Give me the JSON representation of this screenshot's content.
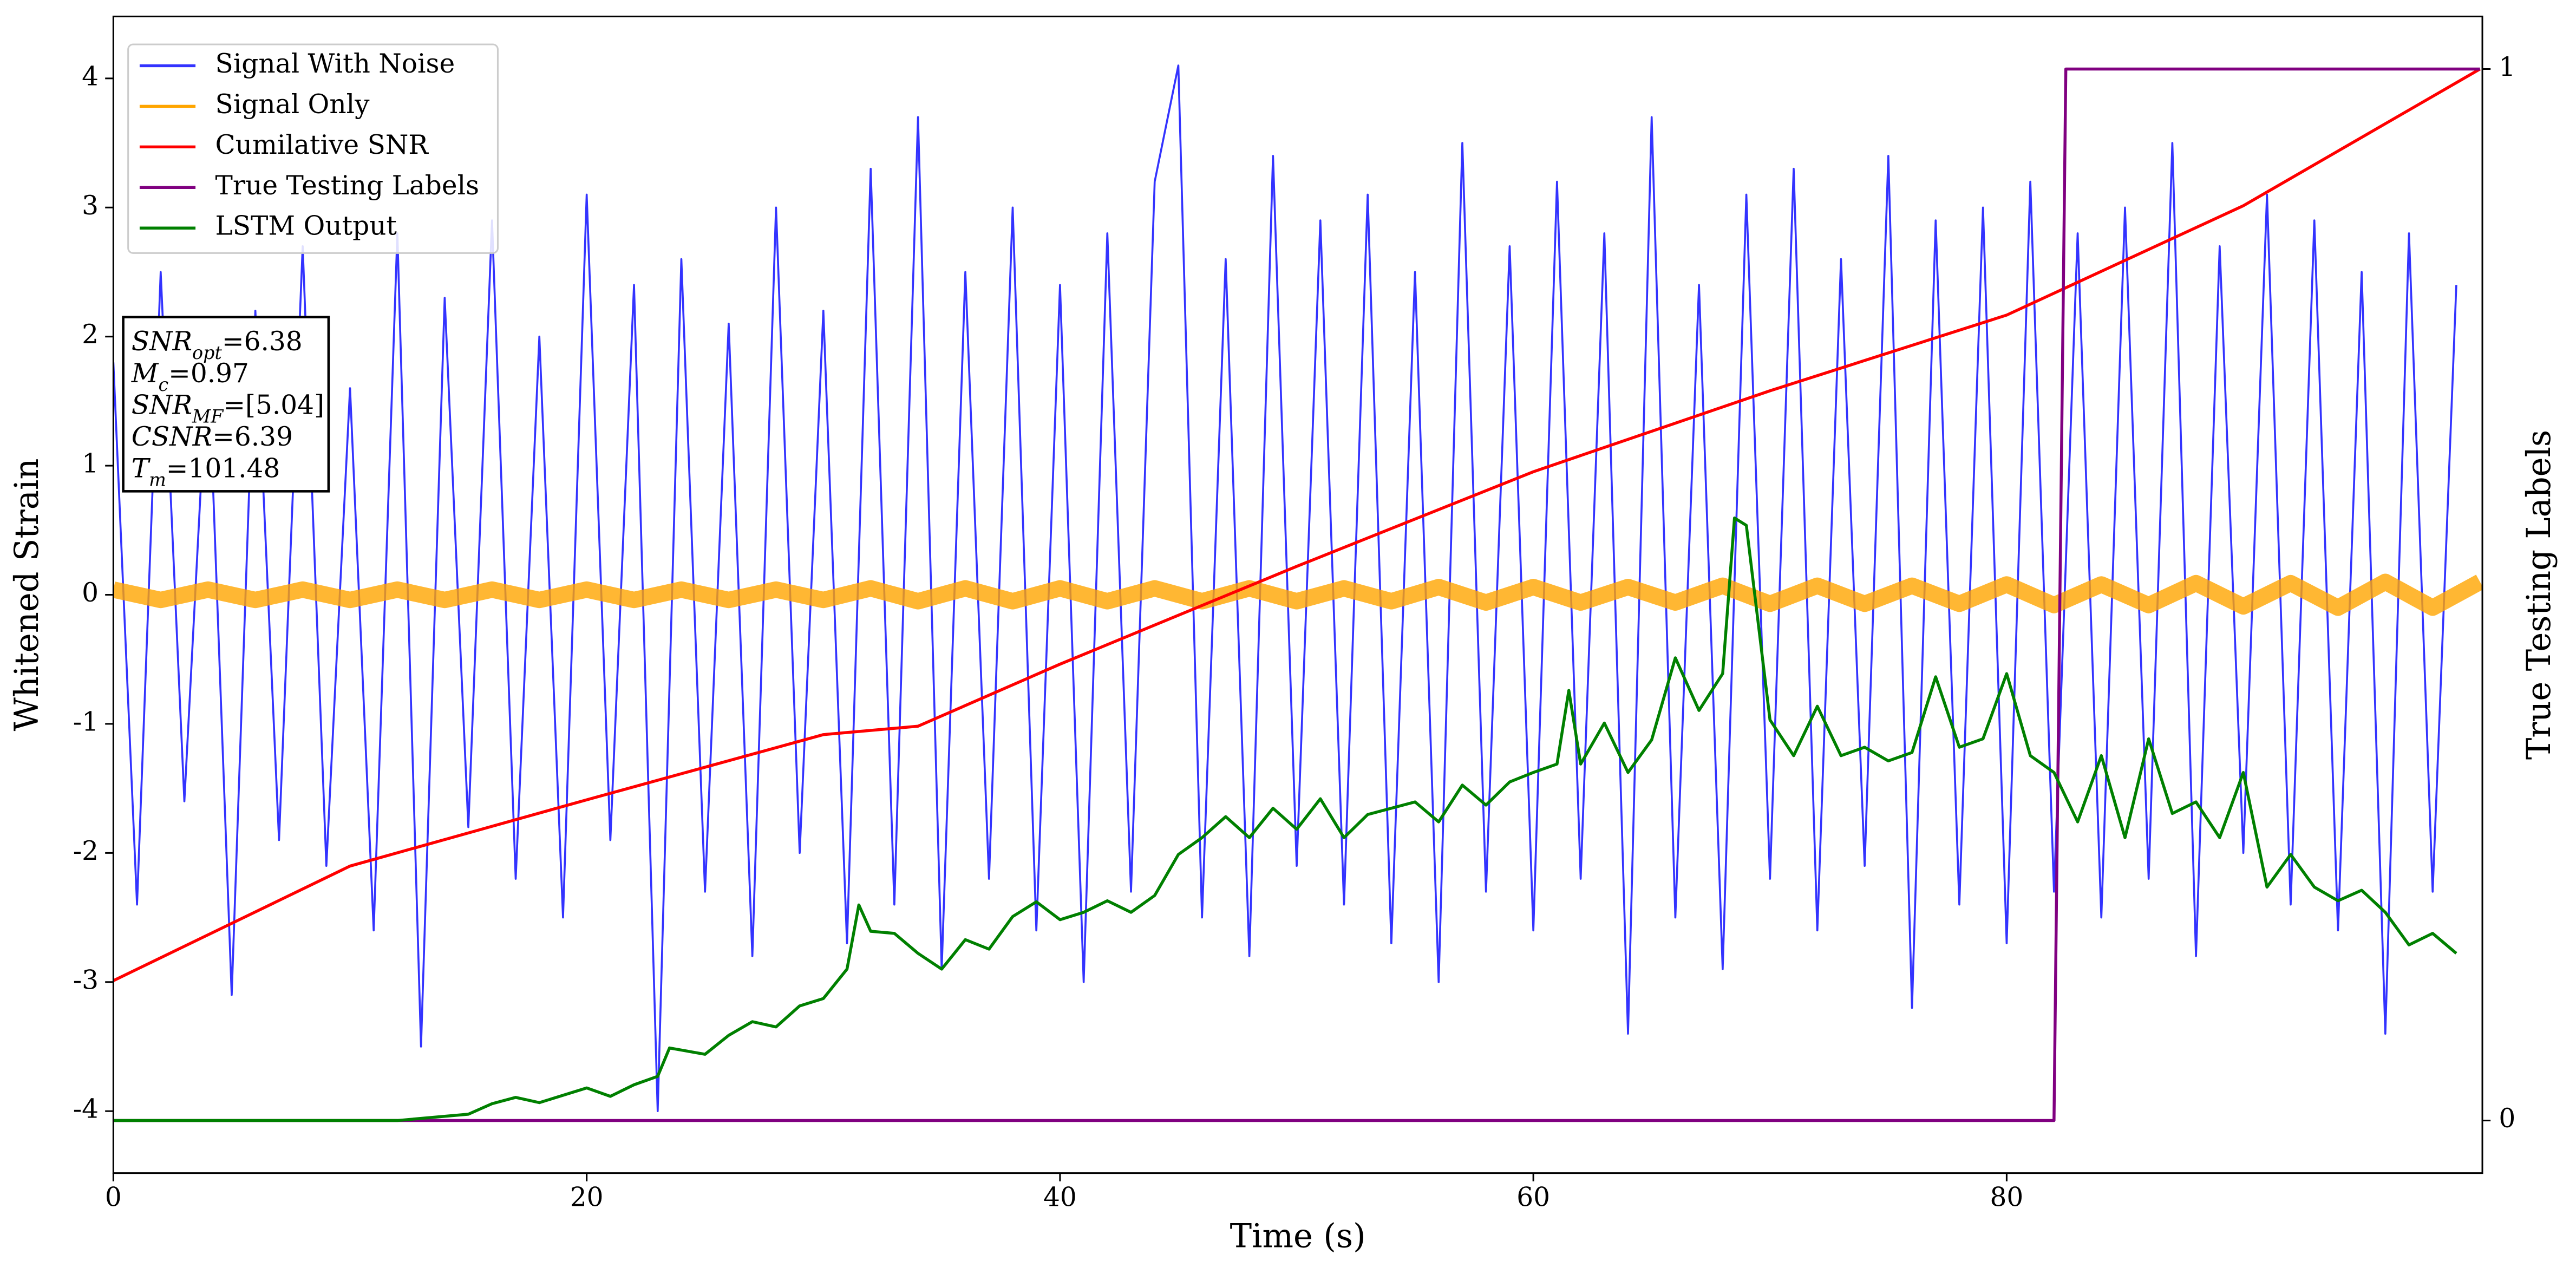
{
  "chart_data": {
    "type": "line",
    "xlabel": "Time (s)",
    "ylabel": "Whitened Strain",
    "y2label": "True Testing Labels",
    "xlim": [
      0,
      100.1
    ],
    "ylim": [
      -4.48,
      4.48
    ],
    "y2lim": [
      -0.05,
      1.05
    ],
    "xticks": [
      0,
      20,
      40,
      60,
      80
    ],
    "yticks": [
      -4,
      -3,
      -2,
      -1,
      0,
      1,
      2,
      3,
      4
    ],
    "y2ticks": [
      0,
      1
    ],
    "legend": "upper left",
    "annotation": [
      {
        "base": "SNR",
        "sub": "opt",
        "text": "=6.38"
      },
      {
        "base": "M",
        "sub": "c",
        "text": "=0.97"
      },
      {
        "base": "SNR",
        "sub": "MF",
        "text": "=[5.04]"
      },
      {
        "base": "CSNR",
        "sub": "",
        "text": "=6.39"
      },
      {
        "base": "T",
        "sub": "m",
        "text": "=101.48"
      }
    ],
    "series": [
      {
        "name": "Signal With Noise",
        "color": "#3333ff",
        "axis": "y",
        "x": [
          0,
          1,
          2,
          3,
          4,
          5,
          6,
          7,
          8,
          9,
          10,
          11,
          12,
          13,
          14,
          15,
          16,
          17,
          18,
          19,
          20,
          21,
          22,
          23,
          24,
          25,
          26,
          27,
          28,
          29,
          30,
          31,
          32,
          33,
          34,
          35,
          36,
          37,
          38,
          39,
          40,
          41,
          42,
          43,
          44,
          45,
          46,
          47,
          48,
          49,
          50,
          51,
          52,
          53,
          54,
          55,
          56,
          57,
          58,
          59,
          60,
          61,
          62,
          63,
          64,
          65,
          66,
          67,
          68,
          69,
          70,
          71,
          72,
          73,
          74,
          75,
          76,
          77,
          78,
          79,
          80,
          81,
          82,
          83,
          84,
          85,
          86,
          87,
          88,
          89,
          90,
          91,
          92,
          93,
          94,
          95,
          96,
          97,
          98,
          99
        ],
        "values": [
          1.8,
          -2.4,
          2.5,
          -1.6,
          1.9,
          -3.1,
          2.2,
          -1.9,
          2.7,
          -2.1,
          1.6,
          -2.6,
          2.8,
          -3.5,
          2.3,
          -1.8,
          2.9,
          -2.2,
          2.0,
          -2.5,
          3.1,
          -1.9,
          2.4,
          -4.0,
          2.6,
          -2.3,
          2.1,
          -2.8,
          3.0,
          -2.0,
          2.2,
          -2.7,
          3.3,
          -2.4,
          3.7,
          -2.9,
          2.5,
          -2.2,
          3.0,
          -2.6,
          2.4,
          -3.0,
          2.8,
          -2.3,
          3.2,
          4.1,
          -2.5,
          2.6,
          -2.8,
          3.4,
          -2.1,
          2.9,
          -2.4,
          3.1,
          -2.7,
          2.5,
          -3.0,
          3.5,
          -2.3,
          2.7,
          -2.6,
          3.2,
          -2.2,
          2.8,
          -3.4,
          3.7,
          -2.5,
          2.4,
          -2.9,
          3.1,
          -2.2,
          3.3,
          -2.6,
          2.6,
          -2.1,
          3.4,
          -3.2,
          2.9,
          -2.4,
          3.0,
          -2.7,
          3.2,
          -2.3,
          2.8,
          -2.5,
          3.0,
          -2.2,
          3.5,
          -2.8,
          2.7,
          -2.0,
          3.1,
          -2.4,
          2.9,
          -2.6,
          2.5,
          -3.4,
          2.8,
          -2.3,
          2.4
        ]
      },
      {
        "name": "Signal Only",
        "color": "#ffa500",
        "axis": "y",
        "x": [
          0,
          2,
          4,
          6,
          8,
          10,
          12,
          14,
          16,
          18,
          20,
          22,
          24,
          26,
          28,
          30,
          32,
          34,
          36,
          38,
          40,
          42,
          44,
          46,
          48,
          50,
          52,
          54,
          56,
          58,
          60,
          62,
          64,
          66,
          68,
          70,
          72,
          74,
          76,
          78,
          80,
          82,
          84,
          86,
          88,
          90,
          92,
          94,
          96,
          98,
          100
        ],
        "values": [
          0.04,
          -0.04,
          0.04,
          -0.04,
          0.04,
          -0.04,
          0.04,
          -0.04,
          0.04,
          -0.04,
          0.04,
          -0.04,
          0.04,
          -0.04,
          0.04,
          -0.04,
          0.05,
          -0.05,
          0.05,
          -0.05,
          0.05,
          -0.05,
          0.05,
          -0.05,
          0.05,
          -0.05,
          0.05,
          -0.05,
          0.06,
          -0.06,
          0.06,
          -0.06,
          0.06,
          -0.06,
          0.07,
          -0.07,
          0.07,
          -0.07,
          0.07,
          -0.07,
          0.08,
          -0.08,
          0.08,
          -0.08,
          0.09,
          -0.09,
          0.09,
          -0.1,
          0.1,
          -0.1,
          0.1
        ]
      },
      {
        "name": "Cumilative SNR",
        "color": "#ff0000",
        "axis": "y2",
        "x": [
          0,
          10,
          20,
          30,
          34,
          40,
          50,
          60,
          70,
          80,
          90,
          100
        ],
        "values": [
          0.133,
          0.242,
          0.305,
          0.367,
          0.375,
          0.434,
          0.527,
          0.617,
          0.694,
          0.766,
          0.87,
          1.0
        ]
      },
      {
        "name": "True Testing Labels",
        "color": "#800080",
        "axis": "y2",
        "x": [
          0,
          82,
          82.5,
          100
        ],
        "values": [
          0,
          0,
          1,
          1
        ]
      },
      {
        "name": "LSTM Output",
        "color": "#008000",
        "axis": "y2",
        "x": [
          0,
          12,
          15,
          16,
          17,
          18,
          20,
          21,
          22,
          23,
          23.5,
          25,
          26,
          27,
          28,
          29,
          30,
          31,
          31.5,
          32,
          33,
          34,
          35,
          36,
          37,
          38,
          39,
          40,
          41,
          42,
          43,
          44,
          45,
          46,
          47,
          48,
          49,
          50,
          51,
          52,
          53,
          54,
          55,
          56,
          57,
          58,
          59,
          60,
          61,
          61.5,
          62,
          63,
          64,
          65,
          66,
          67,
          68,
          68.5,
          69,
          70,
          71,
          72,
          73,
          74,
          75,
          76,
          77,
          78,
          79,
          80,
          81,
          82,
          83,
          84,
          85,
          86,
          87,
          88,
          89,
          90,
          91,
          92,
          93,
          94,
          95,
          96,
          97,
          98,
          99
        ],
        "values": [
          0,
          0,
          0.006,
          0.016,
          0.022,
          0.017,
          0.031,
          0.023,
          0.034,
          0.042,
          0.069,
          0.063,
          0.081,
          0.094,
          0.089,
          0.109,
          0.116,
          0.144,
          0.205,
          0.18,
          0.178,
          0.159,
          0.144,
          0.172,
          0.163,
          0.194,
          0.208,
          0.191,
          0.198,
          0.209,
          0.198,
          0.214,
          0.253,
          0.269,
          0.289,
          0.269,
          0.297,
          0.277,
          0.306,
          0.269,
          0.291,
          0.297,
          0.303,
          0.284,
          0.319,
          0.3,
          0.322,
          0.331,
          0.339,
          0.409,
          0.339,
          0.378,
          0.331,
          0.362,
          0.44,
          0.39,
          0.425,
          0.573,
          0.566,
          0.381,
          0.347,
          0.394,
          0.347,
          0.355,
          0.342,
          0.35,
          0.422,
          0.355,
          0.363,
          0.425,
          0.347,
          0.331,
          0.284,
          0.347,
          0.269,
          0.363,
          0.292,
          0.303,
          0.269,
          0.331,
          0.222,
          0.253,
          0.222,
          0.209,
          0.219,
          0.198,
          0.167,
          0.178,
          0.159
        ]
      }
    ]
  }
}
